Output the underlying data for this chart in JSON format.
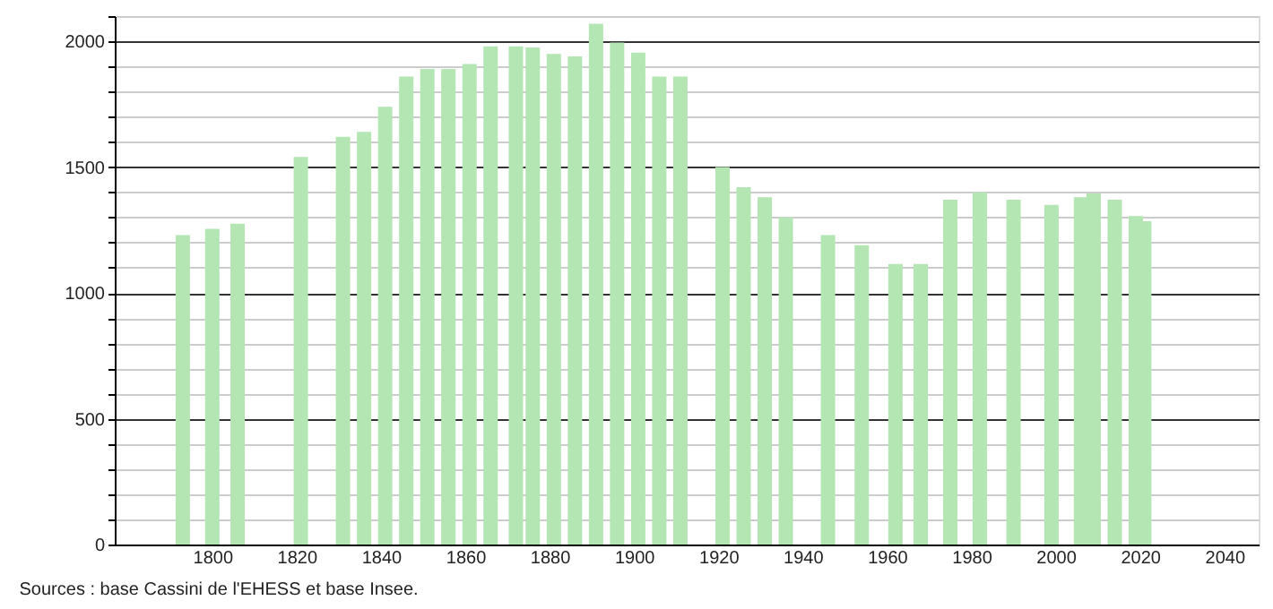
{
  "chart_data": {
    "type": "bar",
    "color": "#b3e6b3",
    "x": [
      1793,
      1800,
      1806,
      1821,
      1831,
      1836,
      1841,
      1846,
      1851,
      1856,
      1861,
      1866,
      1872,
      1876,
      1881,
      1886,
      1891,
      1896,
      1901,
      1906,
      1911,
      1921,
      1926,
      1931,
      1936,
      1946,
      1954,
      1962,
      1968,
      1975,
      1982,
      1990,
      1999,
      2006,
      2009,
      2014,
      2019,
      2021
    ],
    "values": [
      1230,
      1255,
      1275,
      1540,
      1620,
      1640,
      1740,
      1860,
      1890,
      1890,
      1910,
      1980,
      1980,
      1975,
      1950,
      1940,
      2070,
      1995,
      1955,
      1860,
      1860,
      1500,
      1420,
      1380,
      1300,
      1230,
      1190,
      1115,
      1115,
      1370,
      1400,
      1370,
      1350,
      1380,
      1395,
      1370,
      1305,
      1285
    ],
    "xlim": [
      1779,
      2046
    ],
    "xticks": [
      1800,
      1820,
      1840,
      1860,
      1880,
      1900,
      1920,
      1940,
      1960,
      1980,
      2000,
      2020,
      2040
    ],
    "ylim": [
      0,
      2100
    ],
    "yticks": [
      0,
      {
        "value": 100,
        "label": null
      },
      {
        "value": 200,
        "label": null
      },
      {
        "value": 300,
        "label": null
      },
      {
        "value": 400,
        "label": null
      },
      500,
      {
        "value": 600,
        "label": null
      },
      {
        "value": 700,
        "label": null
      },
      {
        "value": 800,
        "label": null
      },
      {
        "value": 900,
        "label": null
      },
      1000,
      {
        "value": 1100,
        "label": null
      },
      {
        "value": 1200,
        "label": null
      },
      {
        "value": 1300,
        "label": null
      },
      {
        "value": 1400,
        "label": null
      },
      1500,
      {
        "value": 1600,
        "label": null
      },
      {
        "value": 1700,
        "label": null
      },
      {
        "value": 1800,
        "label": null
      },
      {
        "value": 1900,
        "label": null
      },
      2000,
      {
        "value": 2100,
        "label": null
      }
    ],
    "grid": "y",
    "annotations": [
      "Sources : base Cassini de l'EHESS et base Insee."
    ]
  }
}
